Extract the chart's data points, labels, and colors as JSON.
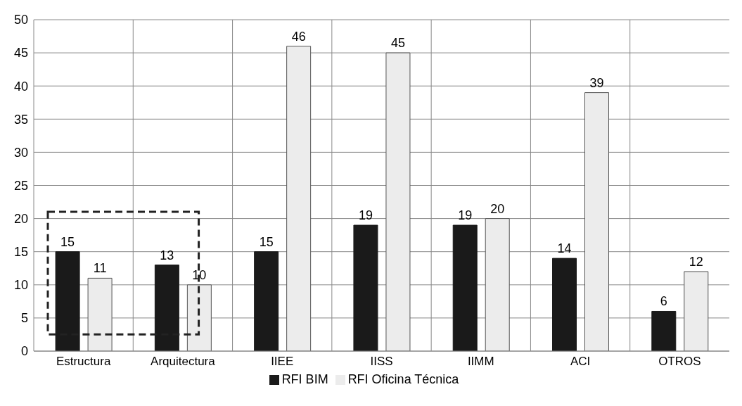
{
  "chart_data": {
    "type": "bar",
    "categories": [
      "Estructura",
      "Arquitectura",
      "IIEE",
      "IISS",
      "IIMM",
      "ACI",
      "OTROS"
    ],
    "series": [
      {
        "name": "RFI BIM",
        "color": "#1a1a1a",
        "values": [
          15,
          13,
          15,
          19,
          19,
          14,
          6
        ]
      },
      {
        "name": "RFI Oficina Técnica",
        "color": "#ececec",
        "values": [
          11,
          10,
          46,
          45,
          20,
          39,
          12
        ]
      }
    ],
    "ylim": [
      0,
      50
    ],
    "yticks": [
      0,
      5,
      10,
      15,
      20,
      25,
      30,
      35,
      40,
      45,
      50
    ],
    "grid": true,
    "legend": "bottom",
    "data_labels": true
  }
}
